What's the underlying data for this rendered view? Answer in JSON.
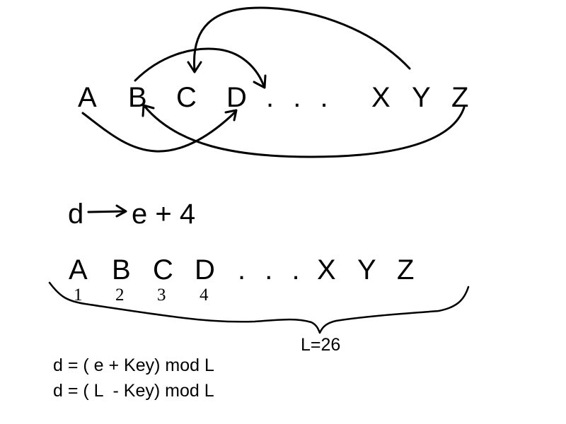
{
  "top_row": {
    "letters": [
      "A",
      "B",
      "C",
      "D",
      "X",
      "Y",
      "Z"
    ],
    "ellipsis": ". . ."
  },
  "mapping": {
    "left": "d",
    "right": "e + 4"
  },
  "bottom_row": {
    "letters": [
      "A",
      "B",
      "C",
      "D",
      "X",
      "Y",
      "Z"
    ],
    "ellipsis": ". . .",
    "numbers": [
      "1",
      "2",
      "3",
      "4"
    ],
    "brace_label": "L=26"
  },
  "formulas": [
    "d = ( e + Key) mod L",
    "d = ( L  - Key) mod L"
  ],
  "colors": {
    "ink": "#000000",
    "background": "#ffffff"
  }
}
